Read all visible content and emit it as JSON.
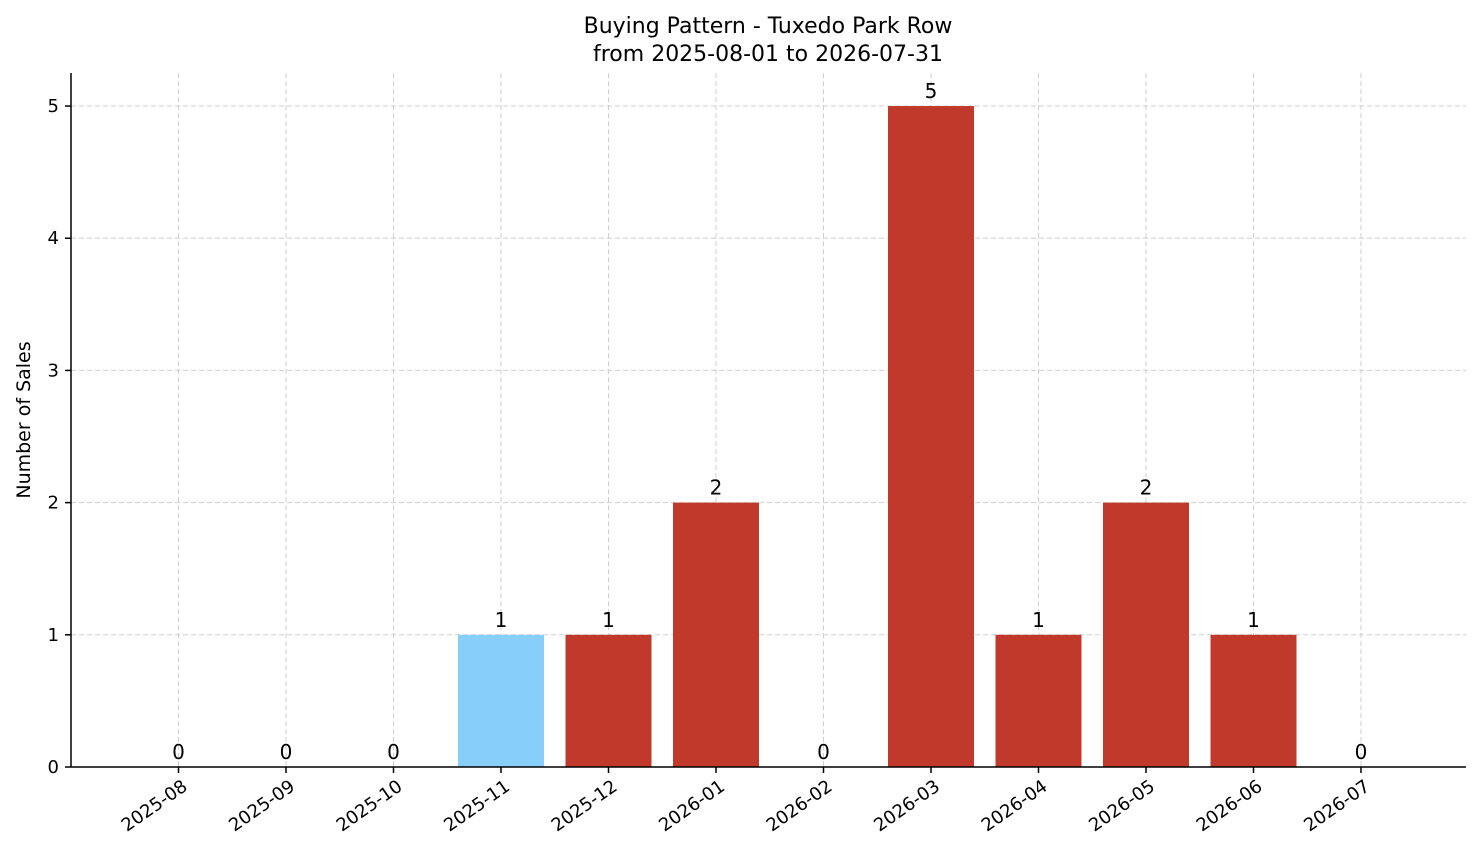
{
  "chart_data": {
    "type": "bar",
    "title": "Buying Pattern - Tuxedo Park Row",
    "subtitle": "from 2025-08-01 to 2026-07-31",
    "xlabel": "",
    "ylabel": "Number of Sales",
    "categories": [
      "2025-08",
      "2025-09",
      "2025-10",
      "2025-11",
      "2025-12",
      "2026-01",
      "2026-02",
      "2026-03",
      "2026-04",
      "2026-05",
      "2026-06",
      "2026-07"
    ],
    "values": [
      0,
      0,
      0,
      1,
      1,
      2,
      0,
      5,
      1,
      2,
      1,
      0
    ],
    "bar_colors": [
      "#c0392b",
      "#c0392b",
      "#c0392b",
      "#87cefa",
      "#c0392b",
      "#c0392b",
      "#c0392b",
      "#c0392b",
      "#c0392b",
      "#c0392b",
      "#c0392b",
      "#c0392b"
    ],
    "ylim": [
      0,
      5.25
    ],
    "yticks": [
      0,
      1,
      2,
      3,
      4,
      5
    ],
    "grid": true,
    "data_labels": true,
    "x_tick_rotation_deg": -35
  }
}
